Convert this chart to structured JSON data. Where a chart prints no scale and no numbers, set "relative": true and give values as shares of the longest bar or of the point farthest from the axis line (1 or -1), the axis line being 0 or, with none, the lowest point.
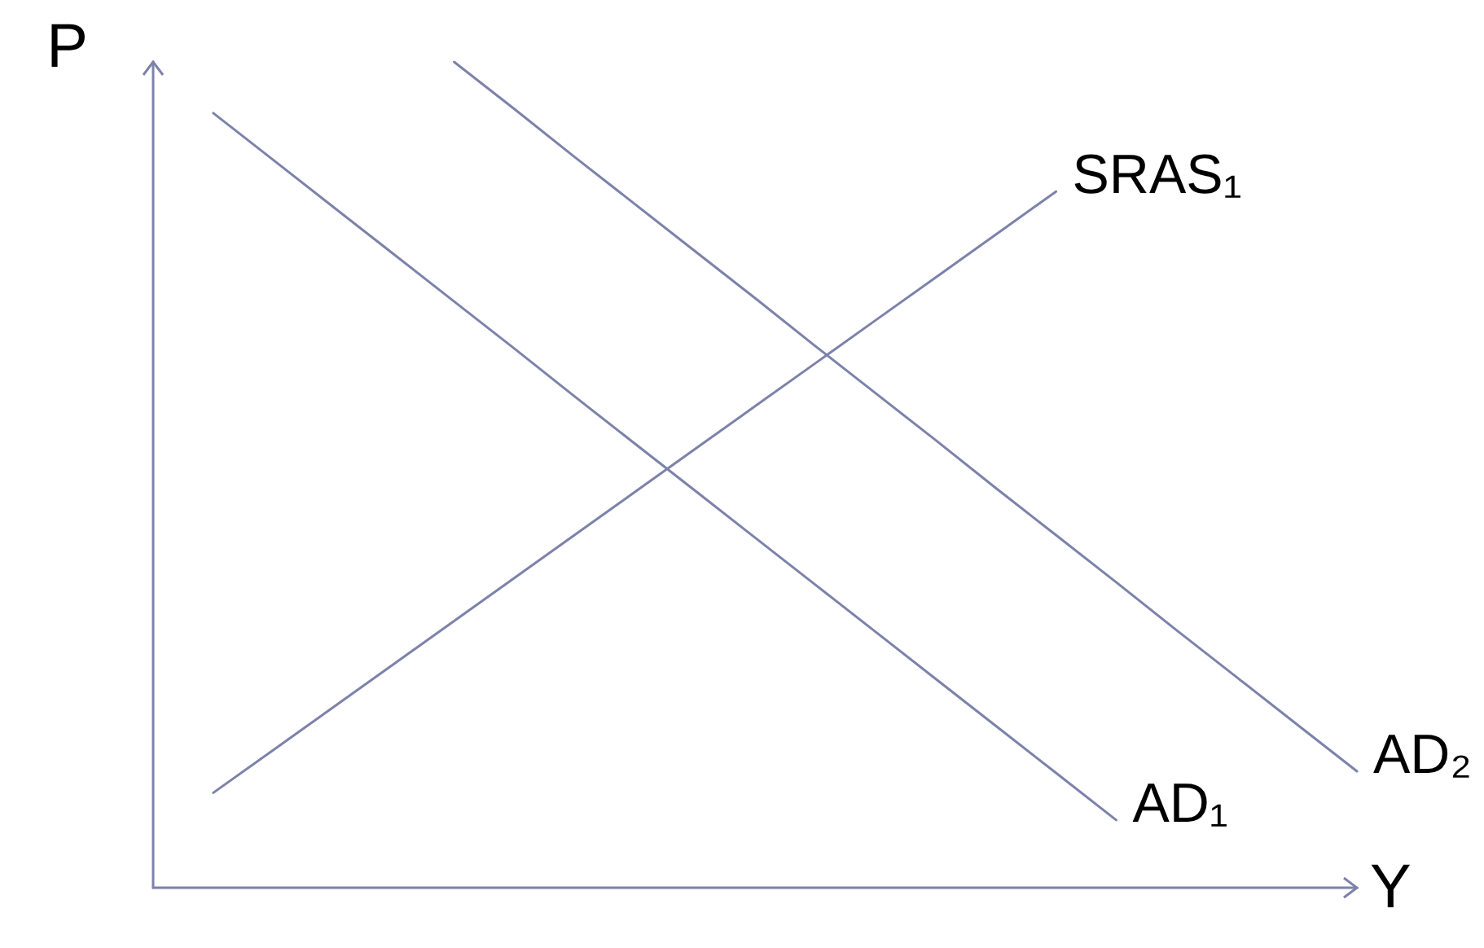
{
  "chart_data": {
    "type": "line",
    "relative": true,
    "xlabel": "Y",
    "ylabel": "P",
    "tick_labels": false,
    "grid": false,
    "legend": false,
    "marker": "none",
    "line_style": "solid",
    "categories": [
      null,
      null,
      null,
      null,
      null,
      null,
      null,
      null,
      null,
      null,
      null,
      null,
      null,
      null,
      null,
      null,
      null,
      null,
      null,
      null,
      null
    ],
    "series": [
      {
        "name": "SRAS₁",
        "color": "#7d82aa",
        "values": [
          null,
          0.115,
          0.167,
          0.219,
          0.271,
          0.323,
          0.375,
          0.427,
          0.479,
          0.531,
          0.583,
          0.635,
          0.687,
          0.739,
          0.791,
          0.843,
          null,
          null,
          null,
          null,
          null
        ]
      },
      {
        "name": "AD₁",
        "color": "#7d82aa",
        "values": [
          null,
          0.938,
          0.881,
          0.824,
          0.767,
          0.71,
          0.653,
          0.595,
          0.538,
          0.481,
          0.424,
          0.367,
          0.31,
          0.253,
          0.196,
          0.139,
          0.082,
          null,
          null,
          null,
          null
        ]
      },
      {
        "name": "AD₂",
        "color": "#7d82aa",
        "values": [
          null,
          null,
          null,
          null,
          null,
          1,
          0.943,
          0.885,
          0.828,
          0.771,
          0.714,
          0.656,
          0.599,
          0.542,
          0.484,
          0.427,
          0.37,
          0.312,
          0.255,
          0.198,
          0.141
        ]
      }
    ]
  }
}
